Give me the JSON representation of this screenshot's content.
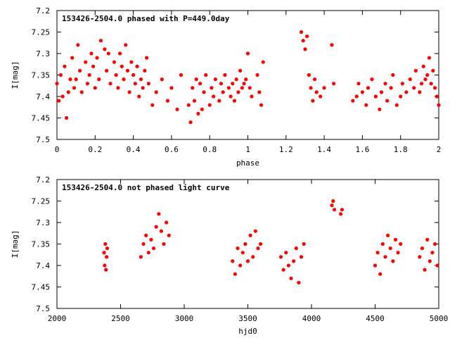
{
  "chart_data": [
    {
      "type": "scatter",
      "title": "153426-2504.0 phased with P=449.0day",
      "xlabel": "phase",
      "ylabel": "I[mag]",
      "xlim": [
        0,
        2
      ],
      "ylim": [
        7.5,
        7.2
      ],
      "y_inverted": true,
      "xticks": [
        "0",
        "0.2",
        "0.4",
        "0.6",
        "0.8",
        "1",
        "1.2",
        "1.4",
        "1.6",
        "1.8",
        "2"
      ],
      "xtick_values": [
        0,
        0.2,
        0.4,
        0.6,
        0.8,
        1,
        1.2,
        1.4,
        1.6,
        1.8,
        2
      ],
      "yticks": [
        "7.2",
        "7.25",
        "7.3",
        "7.35",
        "7.4",
        "7.45",
        "7.5"
      ],
      "ytick_values": [
        7.2,
        7.25,
        7.3,
        7.35,
        7.4,
        7.45,
        7.5
      ],
      "marker_color": "#ff0000",
      "series": [
        {
          "x": [
            0.0,
            0.01,
            0.02,
            0.03,
            0.04,
            0.05,
            0.06,
            0.07,
            0.08,
            0.09,
            0.1,
            0.11,
            0.12,
            0.13,
            0.15,
            0.16,
            0.17,
            0.18,
            0.19,
            0.2,
            0.21,
            0.22,
            0.23,
            0.25,
            0.26,
            0.27,
            0.28,
            0.3,
            0.31,
            0.32,
            0.33,
            0.34,
            0.35,
            0.36,
            0.37,
            0.38,
            0.39,
            0.4,
            0.41,
            0.42,
            0.43,
            0.44,
            0.45,
            0.46,
            0.47,
            0.48,
            0.5,
            0.52,
            0.55,
            0.58,
            0.6,
            0.63,
            0.65,
            0.69,
            0.7,
            0.71,
            0.72,
            0.73,
            0.74,
            0.75,
            0.76,
            0.77,
            0.78,
            0.8,
            0.81,
            0.82,
            0.83,
            0.85,
            0.86,
            0.87,
            0.88,
            0.9,
            0.91,
            0.92,
            0.93,
            0.94,
            0.95,
            0.96,
            0.97,
            0.98,
            0.99,
            1.0,
            1.01,
            1.02,
            1.05,
            1.06,
            1.07,
            1.08,
            1.28,
            1.29,
            1.3,
            1.31,
            1.32,
            1.33,
            1.34,
            1.35,
            1.36,
            1.38,
            1.4,
            1.44,
            1.45,
            1.55,
            1.57,
            1.58,
            1.6,
            1.62,
            1.63,
            1.65,
            1.67,
            1.69,
            1.7,
            1.72,
            1.73,
            1.75,
            1.76,
            1.78,
            1.8,
            1.81,
            1.83,
            1.85,
            1.87,
            1.88,
            1.9,
            1.91,
            1.92,
            1.93,
            1.94,
            1.95,
            1.96,
            1.97,
            1.98,
            1.99,
            2.0
          ],
          "y": [
            7.37,
            7.41,
            7.35,
            7.4,
            7.33,
            7.45,
            7.39,
            7.36,
            7.31,
            7.38,
            7.36,
            7.28,
            7.34,
            7.39,
            7.32,
            7.37,
            7.35,
            7.3,
            7.33,
            7.38,
            7.31,
            7.36,
            7.27,
            7.29,
            7.34,
            7.3,
            7.37,
            7.32,
            7.35,
            7.38,
            7.3,
            7.33,
            7.36,
            7.28,
            7.34,
            7.39,
            7.32,
            7.35,
            7.37,
            7.33,
            7.4,
            7.36,
            7.38,
            7.34,
            7.31,
            7.37,
            7.42,
            7.39,
            7.36,
            7.41,
            7.38,
            7.43,
            7.35,
            7.42,
            7.46,
            7.38,
            7.41,
            7.36,
            7.44,
            7.37,
            7.43,
            7.39,
            7.35,
            7.42,
            7.38,
            7.4,
            7.36,
            7.41,
            7.37,
            7.39,
            7.35,
            7.38,
            7.4,
            7.37,
            7.41,
            7.36,
            7.39,
            7.34,
            7.38,
            7.37,
            7.36,
            7.3,
            7.38,
            7.4,
            7.35,
            7.39,
            7.42,
            7.32,
            7.25,
            7.27,
            7.29,
            7.26,
            7.35,
            7.38,
            7.41,
            7.36,
            7.39,
            7.4,
            7.38,
            7.28,
            7.37,
            7.41,
            7.4,
            7.37,
            7.39,
            7.42,
            7.38,
            7.36,
            7.4,
            7.43,
            7.39,
            7.37,
            7.41,
            7.38,
            7.35,
            7.42,
            7.4,
            7.37,
            7.39,
            7.36,
            7.38,
            7.34,
            7.39,
            7.37,
            7.33,
            7.36,
            7.35,
            7.31,
            7.37,
            7.34,
            7.38,
            7.4,
            7.42
          ]
        }
      ]
    },
    {
      "type": "scatter",
      "title": "153426-2504.0 not phased light curve",
      "xlabel": "hjd0",
      "ylabel": "I[mag]",
      "xlim": [
        2000,
        5000
      ],
      "ylim": [
        7.5,
        7.2
      ],
      "y_inverted": true,
      "xticks": [
        "2000",
        "2500",
        "3000",
        "3500",
        "4000",
        "4500",
        "5000"
      ],
      "xtick_values": [
        2000,
        2500,
        3000,
        3500,
        4000,
        4500,
        5000
      ],
      "yticks": [
        "7.2",
        "7.25",
        "7.3",
        "7.35",
        "7.4",
        "7.45",
        "7.5"
      ],
      "ytick_values": [
        7.2,
        7.25,
        7.3,
        7.35,
        7.4,
        7.45,
        7.5
      ],
      "marker_color": "#ff0000",
      "series": [
        {
          "x": [
            2370,
            2375,
            2380,
            2385,
            2390,
            2395,
            2660,
            2680,
            2700,
            2720,
            2740,
            2760,
            2780,
            2800,
            2820,
            2840,
            2860,
            2880,
            3380,
            3400,
            3420,
            3440,
            3460,
            3480,
            3500,
            3520,
            3540,
            3560,
            3580,
            3600,
            3760,
            3780,
            3800,
            3820,
            3840,
            3860,
            3880,
            3900,
            3920,
            3940,
            4160,
            4170,
            4180,
            4230,
            4240,
            4500,
            4520,
            4540,
            4560,
            4580,
            4600,
            4620,
            4640,
            4660,
            4680,
            4700,
            4850,
            4870,
            4890,
            4910,
            4930,
            4950,
            4970,
            4990
          ],
          "y": [
            7.37,
            7.4,
            7.35,
            7.41,
            7.38,
            7.36,
            7.38,
            7.35,
            7.33,
            7.37,
            7.34,
            7.36,
            7.31,
            7.28,
            7.32,
            7.35,
            7.3,
            7.33,
            7.39,
            7.42,
            7.36,
            7.4,
            7.37,
            7.35,
            7.39,
            7.33,
            7.38,
            7.32,
            7.36,
            7.35,
            7.38,
            7.41,
            7.37,
            7.4,
            7.43,
            7.39,
            7.36,
            7.44,
            7.38,
            7.35,
            7.26,
            7.25,
            7.27,
            7.28,
            7.27,
            7.4,
            7.37,
            7.42,
            7.35,
            7.38,
            7.33,
            7.36,
            7.39,
            7.34,
            7.37,
            7.35,
            7.38,
            7.36,
            7.41,
            7.34,
            7.39,
            7.37,
            7.35,
            7.4
          ]
        }
      ]
    }
  ]
}
